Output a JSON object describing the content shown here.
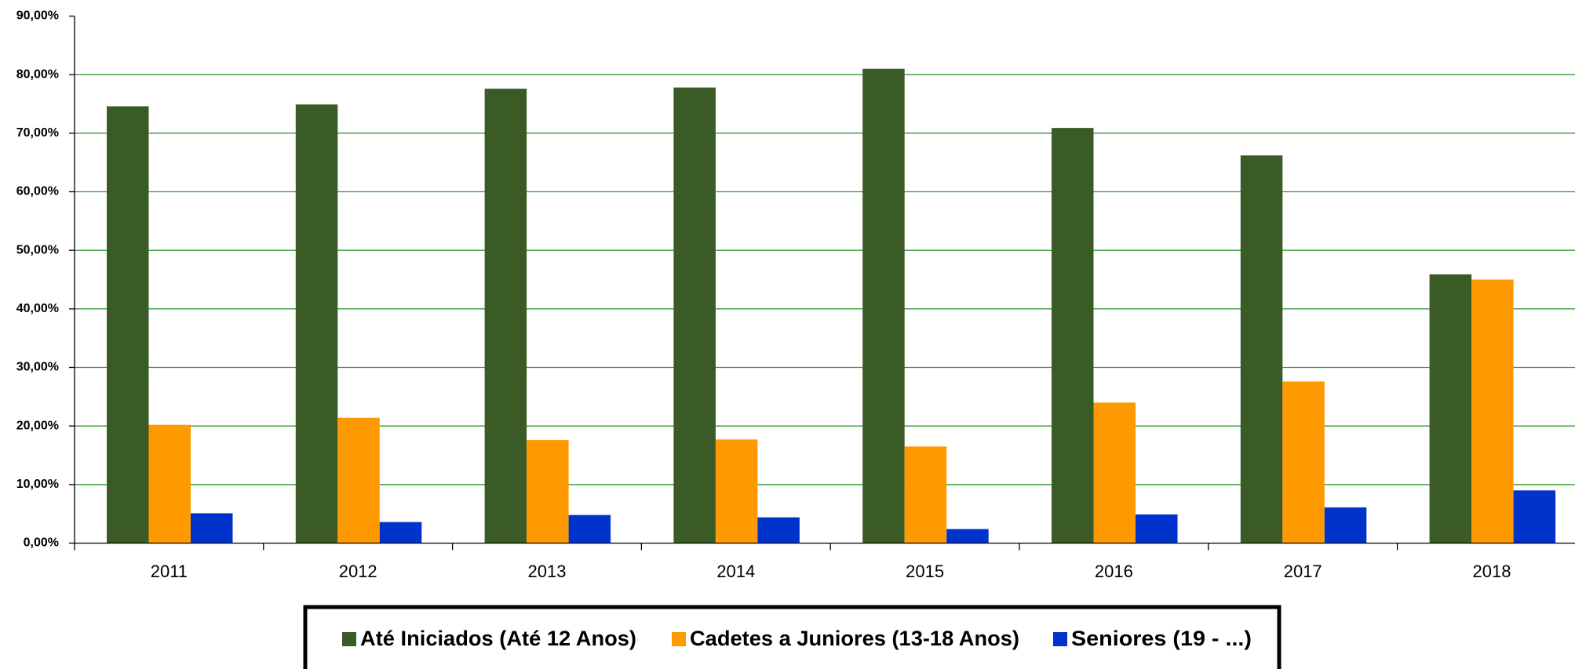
{
  "chart_data": {
    "type": "bar",
    "categories": [
      "2011",
      "2012",
      "2013",
      "2014",
      "2015",
      "2016",
      "2017",
      "2018"
    ],
    "series": [
      {
        "name": "Até Iniciados (Até 12 Anos)",
        "color": "#3a5a26",
        "values": [
          74.6,
          74.9,
          77.6,
          77.8,
          81.0,
          70.9,
          66.2,
          45.9
        ]
      },
      {
        "name": "Cadetes a Juniores (13-18 Anos)",
        "color": "#ff9900",
        "values": [
          20.2,
          21.4,
          17.6,
          17.7,
          16.5,
          24.0,
          27.6,
          45.0
        ]
      },
      {
        "name": "Seniores (19 - ...)",
        "color": "#0033cc",
        "values": [
          5.1,
          3.6,
          4.8,
          4.4,
          2.4,
          4.9,
          6.1,
          9.0
        ]
      }
    ],
    "ylim": [
      0,
      90
    ],
    "yticks": [
      {
        "value": 0,
        "label": "0,00%"
      },
      {
        "value": 10,
        "label": "10,00%"
      },
      {
        "value": 20,
        "label": "20,00%"
      },
      {
        "value": 30,
        "label": "30,00%"
      },
      {
        "value": 40,
        "label": "40,00%"
      },
      {
        "value": 50,
        "label": "50,00%"
      },
      {
        "value": 60,
        "label": "60,00%"
      },
      {
        "value": 70,
        "label": "70,00%"
      },
      {
        "value": 80,
        "label": "80,00%"
      },
      {
        "value": 90,
        "label": "90,00%"
      }
    ],
    "grid": true,
    "grid_color": "#339933",
    "legend": "bottom"
  }
}
